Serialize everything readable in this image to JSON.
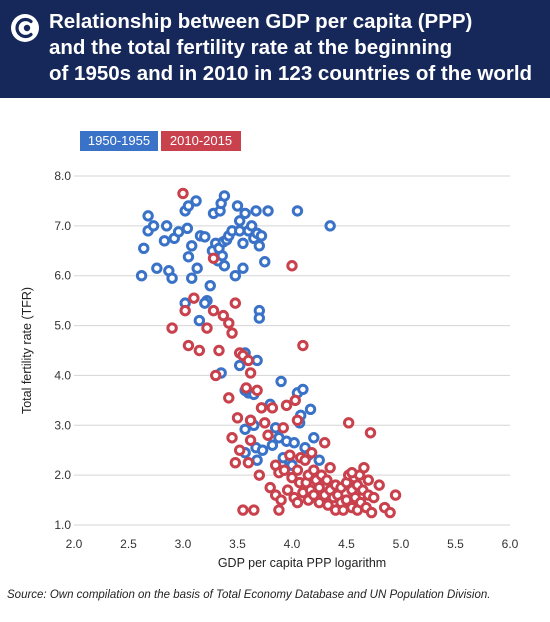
{
  "colors": {
    "header": "#16285a",
    "series1": "#3a72c8",
    "series2": "#c8414c",
    "grid": "#d5d5d5"
  },
  "chart_data": {
    "type": "scatter",
    "title": "Relationship between GDP per capita (PPP) and the total fertility rate at the beginning of 1950s and in 2010 in 123 countries of the world",
    "title_lines": [
      "Relationship between GDP per capita (PPP)",
      "and the total fertility rate at the beginning",
      "of 1950s and in 2010 in 123 countries of the world"
    ],
    "xlabel": "GDP per capita PPP logarithm",
    "ylabel": "Total fertility rate (TFR)",
    "xlim": [
      2.0,
      6.0
    ],
    "ylim": [
      1.0,
      8.0
    ],
    "x_ticks": [
      "2.0",
      "2.5",
      "3.0",
      "3.5",
      "4.0",
      "4.5",
      "5.0",
      "5.5",
      "6.0"
    ],
    "y_ticks": [
      "1.0",
      "2.0",
      "3.0",
      "4.0",
      "5.0",
      "6.0",
      "7.0",
      "8.0"
    ],
    "grid": "horizontal",
    "legend_position": "top-left",
    "series": [
      {
        "name": "1950-1955",
        "color": "#3a72c8",
        "points": [
          [
            2.62,
            6.0
          ],
          [
            2.64,
            6.55
          ],
          [
            2.68,
            6.9
          ],
          [
            2.68,
            7.2
          ],
          [
            2.73,
            7.0
          ],
          [
            2.76,
            6.15
          ],
          [
            2.83,
            6.7
          ],
          [
            2.85,
            7.0
          ],
          [
            2.87,
            6.1
          ],
          [
            2.9,
            5.95
          ],
          [
            2.92,
            6.75
          ],
          [
            2.96,
            6.88
          ],
          [
            3.02,
            7.3
          ],
          [
            3.04,
            6.95
          ],
          [
            3.05,
            7.4
          ],
          [
            3.05,
            6.38
          ],
          [
            3.08,
            5.95
          ],
          [
            3.08,
            6.6
          ],
          [
            3.12,
            7.5
          ],
          [
            3.13,
            6.15
          ],
          [
            3.16,
            6.8
          ],
          [
            3.2,
            6.78
          ],
          [
            3.22,
            5.5
          ],
          [
            3.25,
            5.8
          ],
          [
            3.27,
            6.5
          ],
          [
            3.28,
            7.25
          ],
          [
            3.3,
            6.65
          ],
          [
            3.32,
            6.3
          ],
          [
            3.33,
            6.55
          ],
          [
            3.34,
            7.3
          ],
          [
            3.35,
            7.45
          ],
          [
            3.36,
            6.4
          ],
          [
            3.37,
            6.68
          ],
          [
            3.38,
            7.6
          ],
          [
            3.38,
            6.2
          ],
          [
            3.4,
            6.72
          ],
          [
            3.42,
            6.8
          ],
          [
            3.45,
            6.9
          ],
          [
            3.48,
            6.0
          ],
          [
            3.5,
            7.4
          ],
          [
            3.52,
            7.1
          ],
          [
            3.52,
            6.9
          ],
          [
            3.55,
            6.65
          ],
          [
            3.55,
            6.15
          ],
          [
            3.57,
            7.25
          ],
          [
            3.6,
            6.9
          ],
          [
            3.63,
            7.0
          ],
          [
            3.65,
            6.75
          ],
          [
            3.67,
            7.3
          ],
          [
            3.68,
            6.85
          ],
          [
            3.7,
            6.6
          ],
          [
            3.72,
            6.8
          ],
          [
            3.78,
            7.3
          ],
          [
            3.75,
            6.28
          ],
          [
            3.7,
            5.3
          ],
          [
            3.7,
            5.15
          ],
          [
            3.68,
            4.3
          ],
          [
            3.57,
            4.45
          ],
          [
            3.52,
            4.2
          ],
          [
            3.35,
            4.05
          ],
          [
            3.15,
            5.1
          ],
          [
            3.2,
            5.45
          ],
          [
            3.02,
            5.45
          ],
          [
            3.6,
            3.65
          ],
          [
            3.57,
            3.7
          ],
          [
            3.65,
            3.62
          ],
          [
            3.62,
            3.1
          ],
          [
            3.65,
            3.0
          ],
          [
            3.57,
            2.92
          ],
          [
            3.67,
            2.55
          ],
          [
            3.68,
            2.3
          ],
          [
            3.57,
            2.45
          ],
          [
            3.73,
            2.5
          ],
          [
            3.8,
            3.42
          ],
          [
            3.82,
            2.6
          ],
          [
            3.85,
            2.95
          ],
          [
            3.88,
            2.75
          ],
          [
            3.9,
            3.88
          ],
          [
            3.92,
            2.35
          ],
          [
            3.95,
            2.68
          ],
          [
            3.98,
            2.25
          ],
          [
            4.0,
            2.2
          ],
          [
            4.02,
            2.65
          ],
          [
            4.05,
            3.65
          ],
          [
            4.07,
            3.05
          ],
          [
            4.08,
            3.2
          ],
          [
            4.1,
            3.72
          ],
          [
            4.12,
            2.55
          ],
          [
            4.15,
            2.4
          ],
          [
            4.17,
            3.32
          ],
          [
            4.2,
            2.75
          ],
          [
            4.25,
            2.3
          ],
          [
            4.28,
            1.9
          ],
          [
            4.05,
            7.3
          ],
          [
            4.35,
            7.0
          ]
        ]
      },
      {
        "name": "2010-2015",
        "color": "#c8414c",
        "points": [
          [
            3.0,
            7.65
          ],
          [
            2.9,
            4.95
          ],
          [
            3.02,
            5.3
          ],
          [
            3.05,
            4.6
          ],
          [
            3.1,
            5.55
          ],
          [
            3.15,
            4.5
          ],
          [
            3.22,
            4.95
          ],
          [
            3.28,
            5.3
          ],
          [
            3.3,
            4.0
          ],
          [
            3.28,
            6.35
          ],
          [
            3.33,
            4.5
          ],
          [
            3.37,
            5.2
          ],
          [
            3.42,
            5.05
          ],
          [
            3.45,
            4.85
          ],
          [
            3.48,
            5.45
          ],
          [
            3.52,
            4.45
          ],
          [
            3.55,
            4.4
          ],
          [
            3.6,
            4.3
          ],
          [
            3.62,
            4.05
          ],
          [
            3.58,
            3.75
          ],
          [
            3.42,
            3.55
          ],
          [
            3.5,
            3.15
          ],
          [
            3.45,
            2.75
          ],
          [
            3.48,
            2.25
          ],
          [
            3.52,
            2.5
          ],
          [
            3.6,
            2.25
          ],
          [
            3.62,
            3.1
          ],
          [
            3.68,
            3.7
          ],
          [
            3.7,
            2.0
          ],
          [
            3.72,
            3.35
          ],
          [
            3.75,
            3.05
          ],
          [
            3.78,
            2.8
          ],
          [
            3.8,
            1.75
          ],
          [
            3.82,
            3.35
          ],
          [
            3.85,
            2.2
          ],
          [
            3.85,
            1.6
          ],
          [
            3.88,
            2.05
          ],
          [
            3.9,
            1.5
          ],
          [
            3.92,
            2.95
          ],
          [
            3.93,
            2.1
          ],
          [
            3.95,
            3.4
          ],
          [
            3.96,
            1.7
          ],
          [
            3.98,
            2.4
          ],
          [
            4.0,
            1.95
          ],
          [
            4.0,
            6.2
          ],
          [
            4.02,
            1.55
          ],
          [
            4.03,
            3.5
          ],
          [
            4.05,
            2.1
          ],
          [
            4.05,
            3.1
          ],
          [
            4.07,
            1.85
          ],
          [
            4.08,
            2.35
          ],
          [
            4.1,
            4.6
          ],
          [
            4.1,
            1.65
          ],
          [
            4.12,
            2.3
          ],
          [
            4.13,
            1.85
          ],
          [
            4.15,
            2.0
          ],
          [
            4.15,
            1.5
          ],
          [
            4.17,
            1.7
          ],
          [
            4.18,
            2.45
          ],
          [
            4.2,
            2.1
          ],
          [
            4.2,
            1.6
          ],
          [
            4.22,
            1.9
          ],
          [
            4.25,
            1.75
          ],
          [
            4.25,
            1.45
          ],
          [
            4.27,
            2.0
          ],
          [
            4.3,
            1.6
          ],
          [
            4.3,
            2.65
          ],
          [
            4.32,
            1.9
          ],
          [
            4.33,
            1.4
          ],
          [
            4.35,
            1.7
          ],
          [
            4.35,
            2.15
          ],
          [
            4.38,
            1.55
          ],
          [
            4.4,
            1.8
          ],
          [
            4.4,
            1.3
          ],
          [
            4.42,
            1.6
          ],
          [
            4.45,
            1.75
          ],
          [
            4.45,
            1.45
          ],
          [
            4.47,
            1.3
          ],
          [
            4.5,
            1.85
          ],
          [
            4.5,
            1.5
          ],
          [
            4.52,
            2.0
          ],
          [
            4.52,
            3.05
          ],
          [
            4.55,
            1.7
          ],
          [
            4.55,
            1.35
          ],
          [
            4.57,
            1.95
          ],
          [
            4.58,
            1.55
          ],
          [
            4.6,
            1.8
          ],
          [
            4.6,
            1.3
          ],
          [
            4.62,
            2.0
          ],
          [
            4.63,
            1.45
          ],
          [
            4.65,
            1.7
          ],
          [
            4.66,
            2.15
          ],
          [
            4.68,
            1.35
          ],
          [
            4.7,
            1.6
          ],
          [
            4.7,
            1.9
          ],
          [
            4.72,
            2.85
          ],
          [
            4.73,
            1.25
          ],
          [
            4.75,
            1.55
          ],
          [
            4.8,
            1.8
          ],
          [
            4.85,
            1.35
          ],
          [
            4.9,
            1.25
          ],
          [
            4.95,
            1.6
          ],
          [
            3.88,
            1.3
          ],
          [
            3.65,
            1.3
          ],
          [
            3.55,
            1.3
          ],
          [
            4.05,
            1.45
          ],
          [
            3.62,
            2.7
          ],
          [
            4.55,
            2.05
          ]
        ]
      }
    ]
  },
  "source": "Source: Own compilation on the basis of Total Economy Database and UN Population Division."
}
